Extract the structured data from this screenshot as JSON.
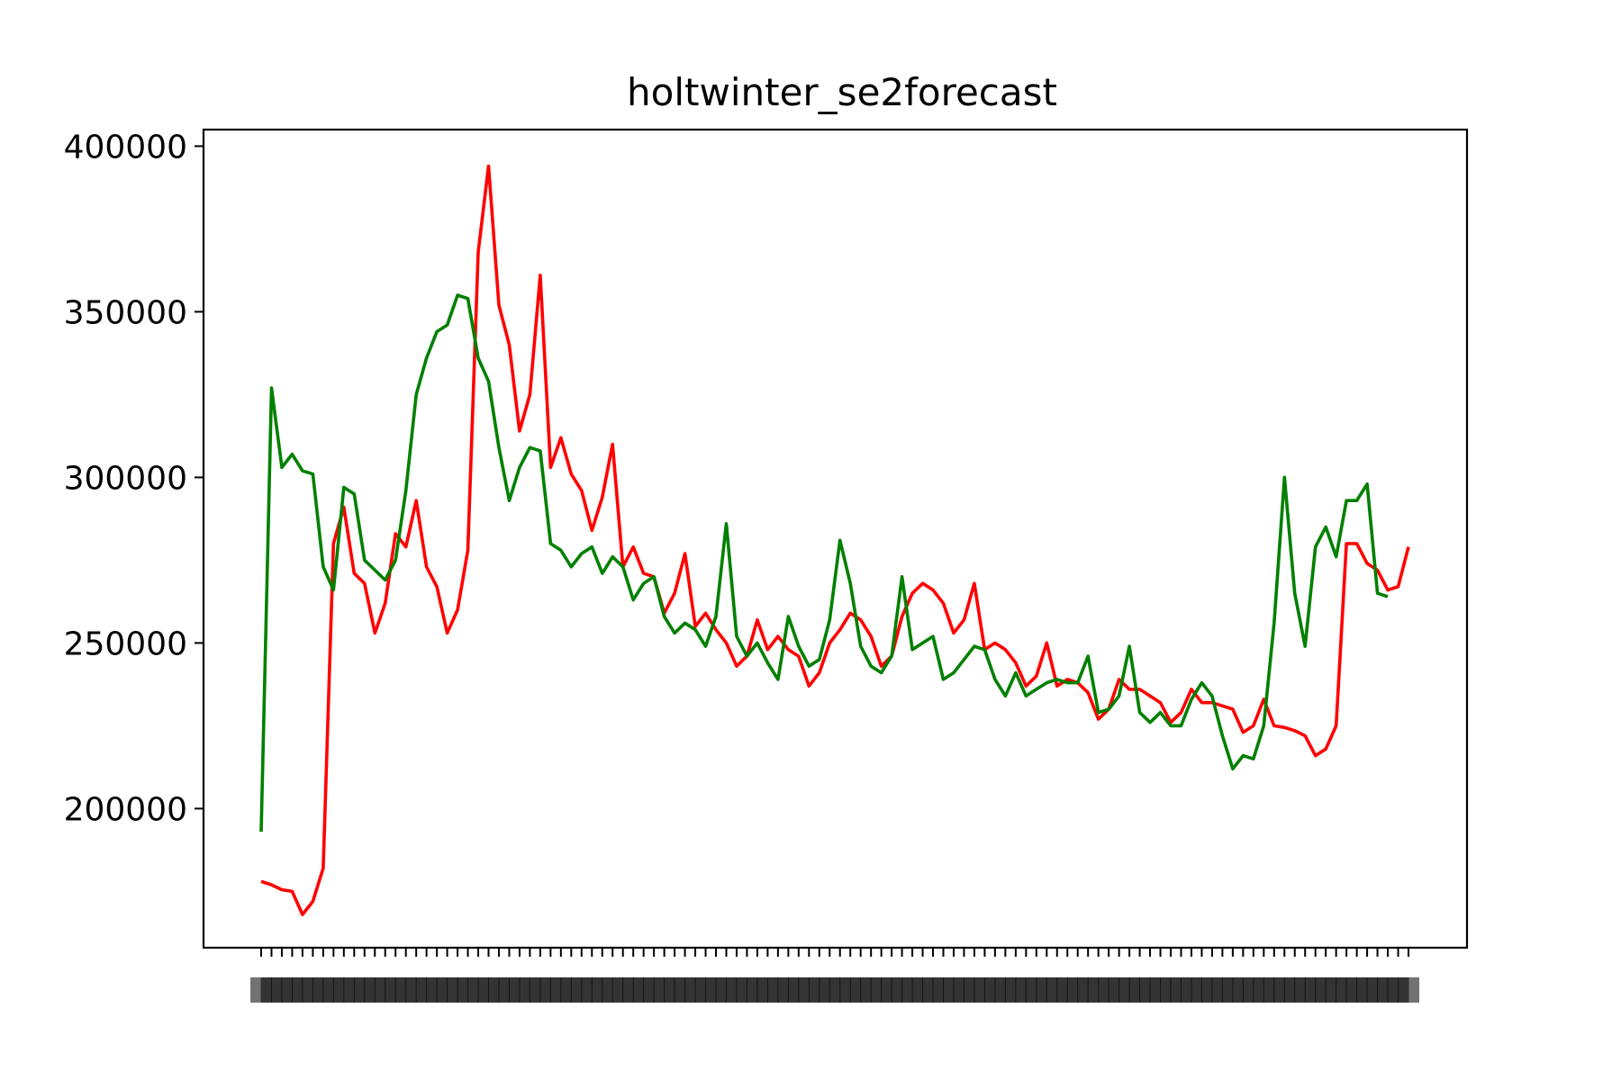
{
  "chart_data": {
    "type": "line",
    "title": "holtwinter_se2forecast",
    "xlabel": "",
    "ylabel": "",
    "ylim": [
      158000,
      405000
    ],
    "yticks": [
      200000,
      250000,
      300000,
      350000,
      400000
    ],
    "ytick_labels": [
      "200000",
      "250000",
      "300000",
      "350000",
      "400000"
    ],
    "grid": false,
    "legend": "none",
    "x_tick_labels_note": "overlapping, unreadable date labels",
    "series": [
      {
        "color": "#ff0000",
        "values": [
          178000,
          177000,
          175500,
          175000,
          168000,
          172000,
          182000,
          280000,
          291000,
          271000,
          268000,
          253000,
          262000,
          283000,
          279000,
          293000,
          273000,
          267000,
          253000,
          260000,
          278000,
          368000,
          394000,
          352000,
          340000,
          314000,
          325000,
          361000,
          303000,
          312000,
          301000,
          296000,
          284000,
          294000,
          310000,
          273000,
          279000,
          271000,
          270000,
          259000,
          265000,
          277000,
          255000,
          259000,
          254000,
          250000,
          243000,
          246000,
          257000,
          248000,
          252000,
          248000,
          246000,
          237000,
          241000,
          250000,
          254000,
          259000,
          257000,
          252000,
          243000,
          246000,
          258000,
          265000,
          268000,
          266000,
          262000,
          253000,
          257000,
          268000,
          248000,
          250000,
          248000,
          244000,
          237000,
          240000,
          250000,
          237000,
          239000,
          238000,
          235000,
          227000,
          230000,
          239000,
          236000,
          236000,
          234000,
          232000,
          226000,
          229000,
          236000,
          232000,
          232000,
          231000,
          230000,
          223000,
          225000,
          233000,
          225000,
          224500,
          223500,
          222000,
          216000,
          218000,
          225000,
          280000,
          280000,
          274000,
          272000,
          266000,
          267000,
          279000
        ]
      },
      {
        "color": "#008000",
        "values": [
          193000,
          327000,
          303000,
          307000,
          302000,
          301000,
          273000,
          266000,
          297000,
          295000,
          275000,
          272000,
          269000,
          275000,
          296000,
          325000,
          336000,
          344000,
          346000,
          355000,
          354000,
          336000,
          329000,
          309000,
          293000,
          303000,
          309000,
          308000,
          280000,
          278000,
          273000,
          277000,
          279000,
          271000,
          276000,
          273000,
          263000,
          268000,
          270000,
          258000,
          253000,
          256000,
          254000,
          249000,
          258000,
          286000,
          252000,
          246000,
          250000,
          244000,
          239000,
          258000,
          249000,
          243000,
          245000,
          257000,
          281000,
          268000,
          249000,
          243000,
          241000,
          246000,
          270000,
          248000,
          250000,
          252000,
          239000,
          241000,
          245000,
          249000,
          248000,
          239000,
          234000,
          241000,
          234000,
          236000,
          238000,
          239000,
          238000,
          238000,
          246000,
          229000,
          230000,
          234000,
          249000,
          229000,
          226000,
          229000,
          225000,
          225000,
          233000,
          238000,
          234000,
          222000,
          212000,
          216000,
          215000,
          225000,
          256000,
          300000,
          265000,
          249000,
          279000,
          285000,
          276000,
          293000,
          293000,
          298000,
          265000,
          264000
        ]
      }
    ]
  }
}
